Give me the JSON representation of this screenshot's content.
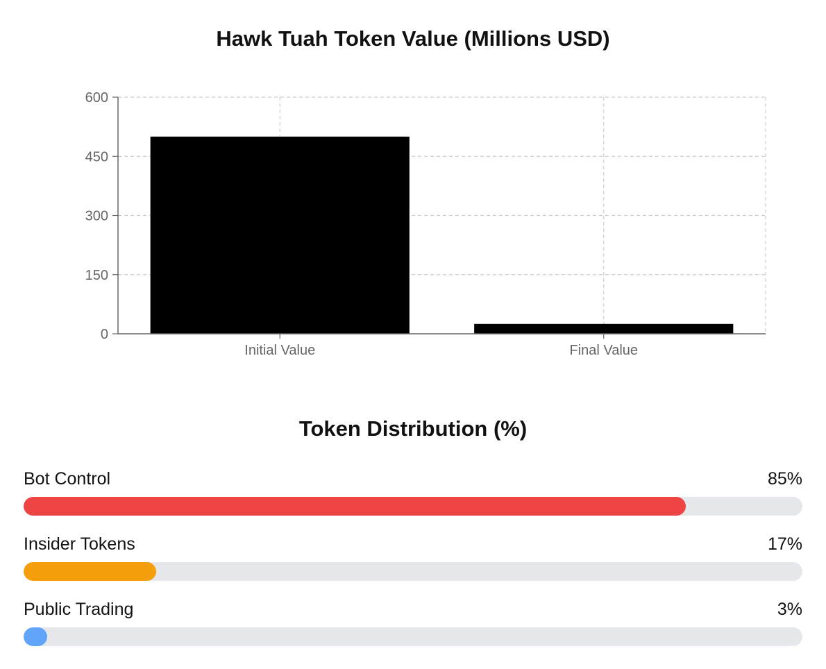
{
  "chart_data": [
    {
      "type": "bar",
      "title": "Hawk Tuah Token Value (Millions USD)",
      "categories": [
        "Initial Value",
        "Final Value"
      ],
      "values": [
        500,
        25
      ],
      "ylim": [
        0,
        600
      ],
      "yticks": [
        0,
        150,
        300,
        450,
        600
      ],
      "grid": true,
      "bar_color": "#000000",
      "xlabel": "",
      "ylabel": ""
    },
    {
      "type": "bar",
      "title": "Token Distribution (%)",
      "items": [
        {
          "label": "Bot Control",
          "value": 85,
          "display": "85%",
          "color": "#ef4444"
        },
        {
          "label": "Insider Tokens",
          "value": 17,
          "display": "17%",
          "color": "#f59e0b"
        },
        {
          "label": "Public Trading",
          "value": 3,
          "display": "3%",
          "color": "#60a5fa"
        }
      ],
      "track_color": "#e5e7eb"
    }
  ]
}
